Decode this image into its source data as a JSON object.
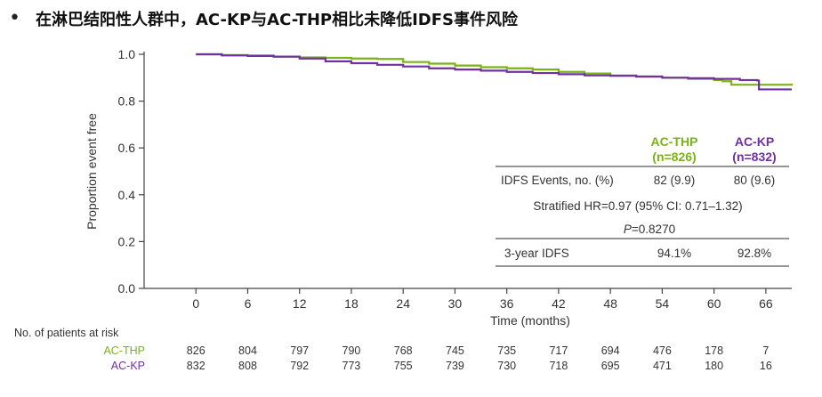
{
  "heading": "在淋巴结阳性人群中，AC-KP与AC-THP相比未降低IDFS事件风险",
  "bullet": "•",
  "chart_data": {
    "type": "line",
    "ylabel": "Proportion event free",
    "xlabel": "Time (months)",
    "xlim": [
      -6,
      69
    ],
    "ylim": [
      0,
      1.0
    ],
    "xticks": [
      0,
      6,
      12,
      18,
      24,
      30,
      36,
      42,
      48,
      54,
      60,
      66
    ],
    "yticks": [
      0.0,
      0.2,
      0.4,
      0.6,
      0.8,
      1.0
    ],
    "ytick_labels": [
      "0.0",
      "0.2",
      "0.4",
      "0.6",
      "0.8",
      "1.0"
    ],
    "grid": false,
    "series": [
      {
        "name": "AC-THP",
        "color": "#7ab317",
        "x": [
          0,
          3,
          6,
          9,
          12,
          15,
          18,
          21,
          24,
          27,
          30,
          33,
          36,
          39,
          42,
          45,
          48,
          51,
          54,
          57,
          60,
          61,
          62,
          66,
          69
        ],
        "y": [
          1.0,
          0.997,
          0.995,
          0.99,
          0.987,
          0.985,
          0.982,
          0.98,
          0.967,
          0.96,
          0.952,
          0.945,
          0.94,
          0.935,
          0.925,
          0.918,
          0.91,
          0.905,
          0.9,
          0.895,
          0.89,
          0.885,
          0.87,
          0.87,
          0.875
        ]
      },
      {
        "name": "AC-KP",
        "color": "#7030a0",
        "x": [
          0,
          3,
          6,
          9,
          12,
          15,
          18,
          21,
          24,
          27,
          30,
          33,
          36,
          39,
          42,
          45,
          48,
          51,
          54,
          57,
          60,
          63,
          65,
          65.2,
          69
        ],
        "y": [
          1.0,
          0.995,
          0.993,
          0.99,
          0.982,
          0.97,
          0.962,
          0.955,
          0.948,
          0.94,
          0.935,
          0.93,
          0.925,
          0.92,
          0.915,
          0.91,
          0.908,
          0.905,
          0.9,
          0.898,
          0.895,
          0.89,
          0.888,
          0.85,
          0.85
        ]
      }
    ],
    "stats_box": {
      "col1_label": "AC-THP",
      "col1_n": "(n=826)",
      "col2_label": "AC-KP",
      "col2_n": "(n=832)",
      "row1_label": "IDFS Events, no. (%)",
      "row1_v1": "82 (9.9)",
      "row1_v2": "80 (9.6)",
      "hr_text": "Stratified HR=0.97 (95% CI: 0.71–1.32)",
      "p_label": "P",
      "p_value": "=0.8270",
      "row3_label": "3-year IDFS",
      "row3_v1": "94.1%",
      "row3_v2": "92.8%"
    },
    "risk_table": {
      "title": "No. of patients at risk",
      "rows": [
        {
          "label": "AC-THP",
          "color": "#7ab317",
          "values": [
            "826",
            "804",
            "797",
            "790",
            "768",
            "745",
            "735",
            "717",
            "694",
            "476",
            "178",
            "7"
          ]
        },
        {
          "label": "AC-KP",
          "color": "#7030a0",
          "values": [
            "832",
            "808",
            "792",
            "773",
            "755",
            "739",
            "730",
            "718",
            "695",
            "471",
            "180",
            "16"
          ]
        }
      ]
    }
  }
}
